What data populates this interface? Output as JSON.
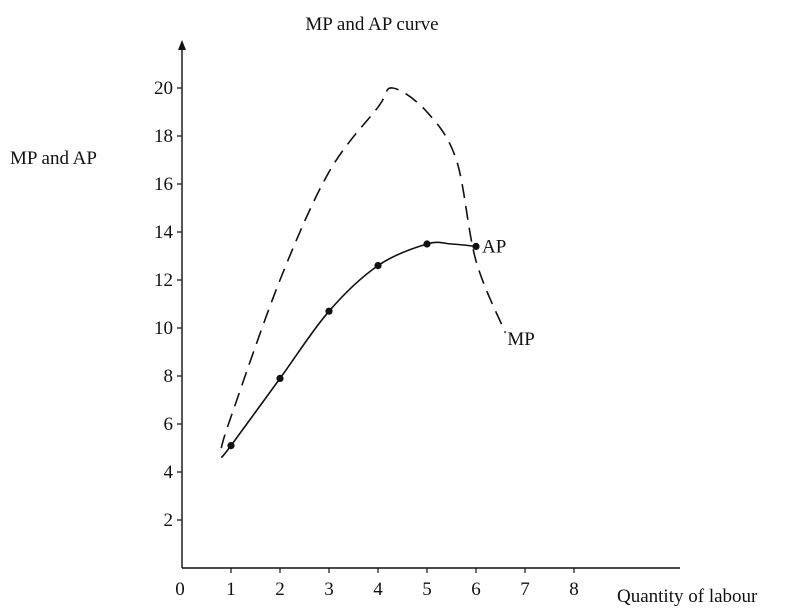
{
  "chart_data": {
    "type": "line",
    "title": "MP and AP curve",
    "xlabel": "Quantity of labour",
    "ylabel": "MP and AP",
    "xlim": [
      0,
      8
    ],
    "ylim": [
      0,
      20
    ],
    "x_ticks": [
      "0",
      "1",
      "2",
      "3",
      "4",
      "5",
      "6",
      "7",
      "8"
    ],
    "y_ticks": [
      "2",
      "4",
      "6",
      "8",
      "10",
      "12",
      "14",
      "16",
      "18",
      "20"
    ],
    "grid": false,
    "legend": "none",
    "series": [
      {
        "name": "MP",
        "style": "dashed",
        "color": "#111111",
        "x": [
          0.8,
          1.0,
          2.0,
          3.0,
          4.0,
          4.3,
          5.0,
          5.6,
          6.0,
          6.6
        ],
        "y": [
          5.0,
          6.3,
          12.0,
          16.5,
          19.2,
          20.0,
          19.0,
          17.0,
          12.8,
          9.8
        ],
        "markers": false,
        "label_position": "end"
      },
      {
        "name": "AP",
        "style": "solid",
        "color": "#111111",
        "x": [
          0.8,
          1.0,
          2.0,
          3.0,
          4.0,
          5.0,
          5.5,
          6.0
        ],
        "y": [
          4.6,
          5.1,
          7.9,
          10.7,
          12.6,
          13.5,
          13.5,
          13.4
        ],
        "markers": true,
        "marker_points": [
          [
            1,
            5.1
          ],
          [
            2,
            7.9
          ],
          [
            3,
            10.7
          ],
          [
            4,
            12.6
          ],
          [
            5,
            13.5
          ],
          [
            6,
            13.4
          ]
        ],
        "label_position": "end"
      }
    ]
  }
}
